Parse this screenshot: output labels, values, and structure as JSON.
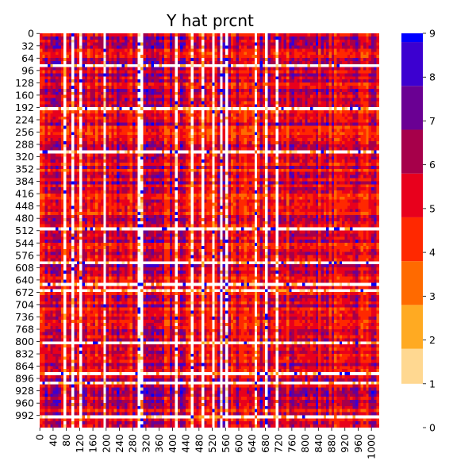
{
  "chart_data": {
    "type": "heatmap",
    "title": "Y hat prcnt",
    "xlabel": "",
    "ylabel": "",
    "n_rows": 1024,
    "n_cols": 1024,
    "row_tick_labels": [
      "0",
      "32",
      "64",
      "96",
      "128",
      "160",
      "192",
      "224",
      "256",
      "288",
      "320",
      "352",
      "384",
      "416",
      "448",
      "480",
      "512",
      "544",
      "576",
      "608",
      "640",
      "672",
      "704",
      "736",
      "768",
      "800",
      "832",
      "864",
      "896",
      "928",
      "960",
      "992"
    ],
    "col_tick_labels": [
      "0",
      "40",
      "80",
      "120",
      "160",
      "200",
      "240",
      "280",
      "320",
      "360",
      "400",
      "440",
      "480",
      "520",
      "560",
      "600",
      "640",
      "680",
      "720",
      "760",
      "800",
      "840",
      "880",
      "920",
      "960",
      "1000"
    ],
    "value_range": [
      0,
      9
    ],
    "colorbar": {
      "tick_labels": [
        "0",
        "1",
        "2",
        "3",
        "4",
        "5",
        "6",
        "7",
        "8",
        "9"
      ],
      "bands": [
        {
          "from": 0,
          "to": 1,
          "color": "#ffffff"
        },
        {
          "from": 1,
          "to": 1.8,
          "color": "#ffd891"
        },
        {
          "from": 1.8,
          "to": 2.8,
          "color": "#ffaa22"
        },
        {
          "from": 2.8,
          "to": 3.8,
          "color": "#ff6a00"
        },
        {
          "from": 3.8,
          "to": 4.8,
          "color": "#ff2800"
        },
        {
          "from": 4.8,
          "to": 5.8,
          "color": "#e8001c"
        },
        {
          "from": 5.8,
          "to": 6.8,
          "color": "#a6004a"
        },
        {
          "from": 6.8,
          "to": 7.8,
          "color": "#6a0093"
        },
        {
          "from": 7.8,
          "to": 8.8,
          "color": "#3c00d0"
        },
        {
          "from": 8.8,
          "to": 9,
          "color": "#0000ff"
        }
      ]
    },
    "grid": false,
    "legend": "colorbar-right"
  }
}
